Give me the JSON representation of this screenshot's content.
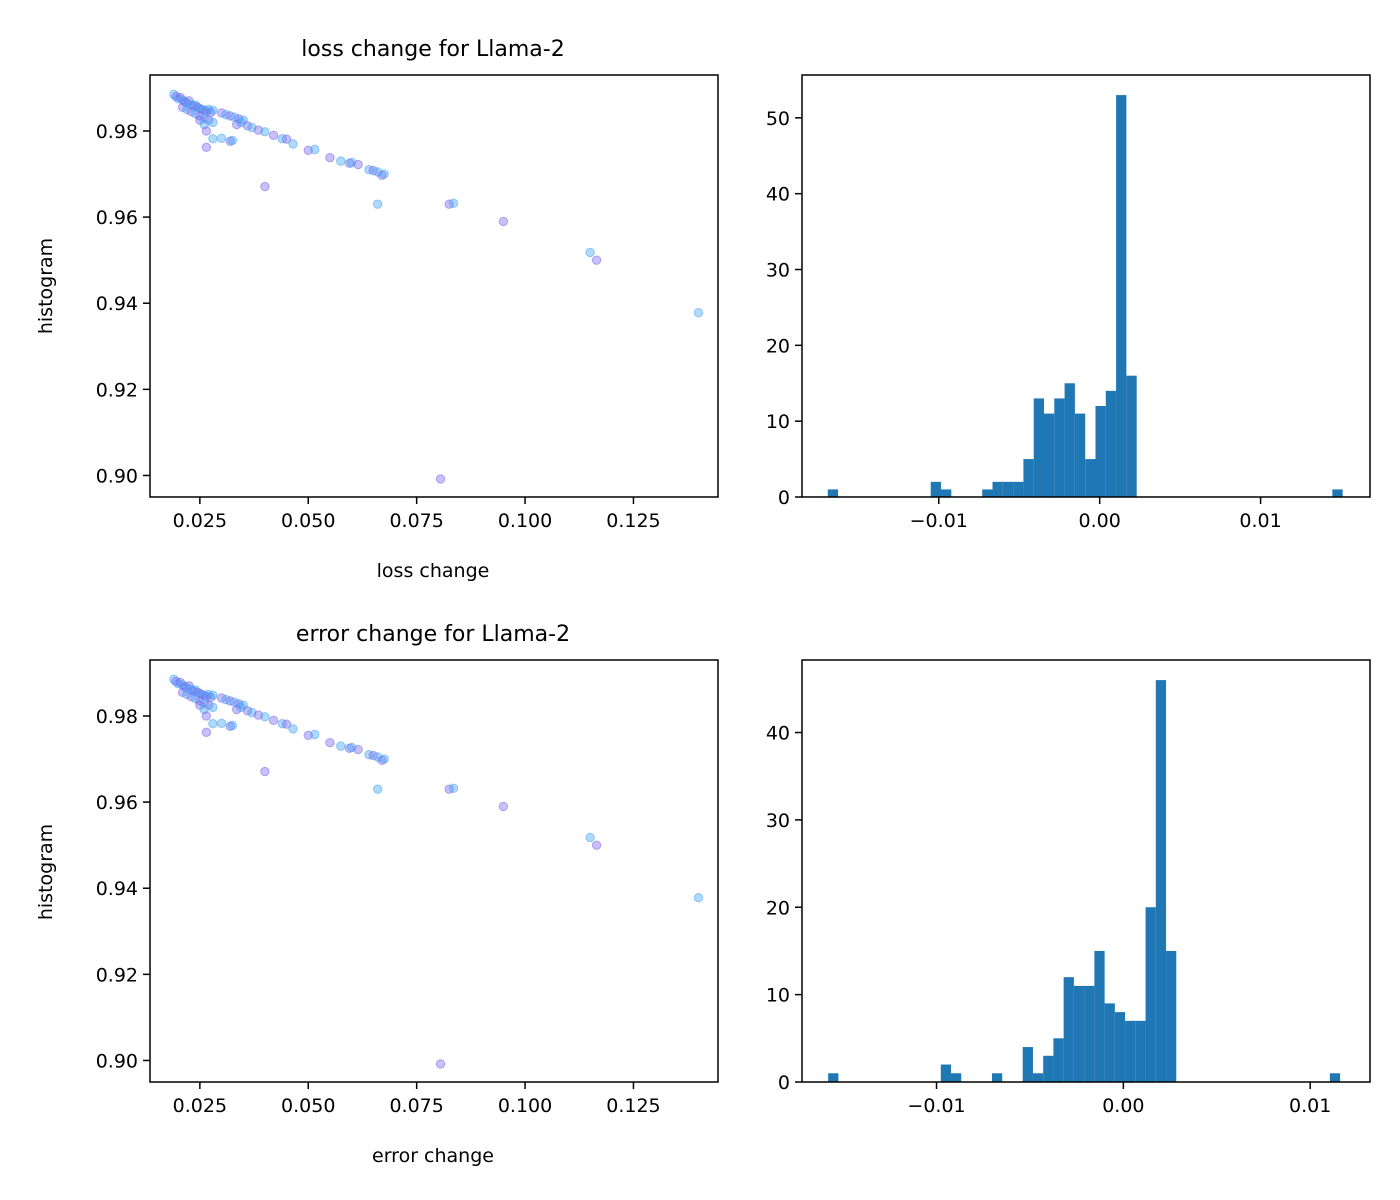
{
  "chart_data": [
    {
      "type": "scatter",
      "title": "loss change for Llama-2",
      "xlabel": "loss change",
      "ylabel": "histogram",
      "xlim": [
        0.0135,
        0.1445
      ],
      "ylim": [
        0.895,
        0.993
      ],
      "xticks": [
        0.025,
        0.05,
        0.075,
        0.1,
        0.125
      ],
      "xtick_labels": [
        "0.025",
        "0.050",
        "0.075",
        "0.100",
        "0.125"
      ],
      "yticks": [
        0.9,
        0.92,
        0.94,
        0.96,
        0.98
      ],
      "ytick_labels": [
        "0.90",
        "0.92",
        "0.94",
        "0.96",
        "0.98"
      ],
      "colors": [
        "#42a5f5",
        "#7b68ee"
      ],
      "grid": false,
      "points": [
        [
          0.019,
          0.9885
        ],
        [
          0.0195,
          0.988
        ],
        [
          0.02,
          0.9875
        ],
        [
          0.0205,
          0.9878
        ],
        [
          0.021,
          0.9872
        ],
        [
          0.0215,
          0.9868
        ],
        [
          0.022,
          0.9865
        ],
        [
          0.0225,
          0.987
        ],
        [
          0.023,
          0.9862
        ],
        [
          0.0235,
          0.9858
        ],
        [
          0.024,
          0.986
        ],
        [
          0.0245,
          0.9855
        ],
        [
          0.025,
          0.9852
        ],
        [
          0.0255,
          0.985
        ],
        [
          0.026,
          0.9848
        ],
        [
          0.0265,
          0.9845
        ],
        [
          0.027,
          0.985
        ],
        [
          0.0275,
          0.9843
        ],
        [
          0.028,
          0.9848
        ],
        [
          0.021,
          0.9855
        ],
        [
          0.022,
          0.985
        ],
        [
          0.023,
          0.9845
        ],
        [
          0.024,
          0.984
        ],
        [
          0.025,
          0.9835
        ],
        [
          0.026,
          0.983
        ],
        [
          0.027,
          0.9825
        ],
        [
          0.028,
          0.982
        ],
        [
          0.025,
          0.9825
        ],
        [
          0.026,
          0.9815
        ],
        [
          0.0265,
          0.98
        ],
        [
          0.028,
          0.9782
        ],
        [
          0.0265,
          0.9762
        ],
        [
          0.03,
          0.9783
        ],
        [
          0.032,
          0.9776
        ],
        [
          0.0325,
          0.9778
        ],
        [
          0.03,
          0.9842
        ],
        [
          0.031,
          0.9838
        ],
        [
          0.032,
          0.9835
        ],
        [
          0.033,
          0.9832
        ],
        [
          0.034,
          0.9828
        ],
        [
          0.035,
          0.9825
        ],
        [
          0.0335,
          0.9815
        ],
        [
          0.0345,
          0.982
        ],
        [
          0.036,
          0.9812
        ],
        [
          0.037,
          0.9808
        ],
        [
          0.0385,
          0.9802
        ],
        [
          0.04,
          0.9798
        ],
        [
          0.042,
          0.979
        ],
        [
          0.044,
          0.9782
        ],
        [
          0.045,
          0.9781
        ],
        [
          0.0465,
          0.977
        ],
        [
          0.05,
          0.9755
        ],
        [
          0.0515,
          0.9757
        ],
        [
          0.055,
          0.9738
        ],
        [
          0.0575,
          0.973
        ],
        [
          0.0595,
          0.9725
        ],
        [
          0.06,
          0.9727
        ],
        [
          0.0615,
          0.9722
        ],
        [
          0.064,
          0.971
        ],
        [
          0.065,
          0.9708
        ],
        [
          0.066,
          0.9705
        ],
        [
          0.067,
          0.9697
        ],
        [
          0.0675,
          0.97
        ],
        [
          0.04,
          0.9671
        ],
        [
          0.066,
          0.963
        ],
        [
          0.0825,
          0.963
        ],
        [
          0.0835,
          0.9632
        ],
        [
          0.095,
          0.959
        ],
        [
          0.115,
          0.9518
        ],
        [
          0.1165,
          0.95
        ],
        [
          0.14,
          0.9378
        ],
        [
          0.0805,
          0.8992
        ]
      ]
    },
    {
      "type": "bar",
      "title": "",
      "xlabel": "",
      "ylabel": "",
      "xlim": [
        -0.0185,
        0.0168
      ],
      "ylim": [
        0,
        55.65
      ],
      "xticks": [
        -0.01,
        0.0,
        0.01
      ],
      "xtick_labels": [
        "−0.01",
        "0.00",
        "0.01"
      ],
      "yticks": [
        0,
        10,
        20,
        30,
        40,
        50
      ],
      "ytick_labels": [
        "0",
        "10",
        "20",
        "30",
        "40",
        "50"
      ],
      "bar_color": "#1f77b4",
      "bin_start": -0.0169,
      "bin_width": 0.00064,
      "values": [
        1,
        0,
        0,
        0,
        0,
        0,
        0,
        0,
        0,
        0,
        2,
        1,
        0,
        0,
        0,
        1,
        2,
        2,
        2,
        5,
        13,
        11,
        13,
        15,
        11,
        5,
        12,
        14,
        53,
        16,
        0,
        0,
        0,
        0,
        0,
        0,
        0,
        0,
        0,
        0,
        0,
        0,
        0,
        0,
        0,
        0,
        0,
        0,
        0,
        1
      ]
    },
    {
      "type": "scatter",
      "title": "error change for Llama-2",
      "xlabel": "error change",
      "ylabel": "histogram",
      "xlim": [
        0.0135,
        0.1445
      ],
      "ylim": [
        0.895,
        0.993
      ],
      "xticks": [
        0.025,
        0.05,
        0.075,
        0.1,
        0.125
      ],
      "xtick_labels": [
        "0.025",
        "0.050",
        "0.075",
        "0.100",
        "0.125"
      ],
      "yticks": [
        0.9,
        0.92,
        0.94,
        0.96,
        0.98
      ],
      "ytick_labels": [
        "0.90",
        "0.92",
        "0.94",
        "0.96",
        "0.98"
      ],
      "colors": [
        "#42a5f5",
        "#7b68ee"
      ],
      "grid": false,
      "points": [
        [
          0.019,
          0.9885
        ],
        [
          0.0195,
          0.988
        ],
        [
          0.02,
          0.9875
        ],
        [
          0.0205,
          0.9878
        ],
        [
          0.021,
          0.9872
        ],
        [
          0.0215,
          0.9868
        ],
        [
          0.022,
          0.9865
        ],
        [
          0.0225,
          0.987
        ],
        [
          0.023,
          0.9862
        ],
        [
          0.0235,
          0.9858
        ],
        [
          0.024,
          0.986
        ],
        [
          0.0245,
          0.9855
        ],
        [
          0.025,
          0.9852
        ],
        [
          0.0255,
          0.985
        ],
        [
          0.026,
          0.9848
        ],
        [
          0.0265,
          0.9845
        ],
        [
          0.027,
          0.985
        ],
        [
          0.0275,
          0.9843
        ],
        [
          0.028,
          0.9848
        ],
        [
          0.021,
          0.9855
        ],
        [
          0.022,
          0.985
        ],
        [
          0.023,
          0.9845
        ],
        [
          0.024,
          0.984
        ],
        [
          0.025,
          0.9835
        ],
        [
          0.026,
          0.983
        ],
        [
          0.027,
          0.9825
        ],
        [
          0.028,
          0.982
        ],
        [
          0.025,
          0.9825
        ],
        [
          0.026,
          0.9815
        ],
        [
          0.0265,
          0.98
        ],
        [
          0.028,
          0.9782
        ],
        [
          0.0265,
          0.9762
        ],
        [
          0.03,
          0.9783
        ],
        [
          0.032,
          0.9776
        ],
        [
          0.0325,
          0.9778
        ],
        [
          0.03,
          0.9842
        ],
        [
          0.031,
          0.9838
        ],
        [
          0.032,
          0.9835
        ],
        [
          0.033,
          0.9832
        ],
        [
          0.034,
          0.9828
        ],
        [
          0.035,
          0.9825
        ],
        [
          0.0335,
          0.9815
        ],
        [
          0.0345,
          0.982
        ],
        [
          0.036,
          0.9812
        ],
        [
          0.037,
          0.9808
        ],
        [
          0.0385,
          0.9802
        ],
        [
          0.04,
          0.9798
        ],
        [
          0.042,
          0.979
        ],
        [
          0.044,
          0.9782
        ],
        [
          0.045,
          0.9781
        ],
        [
          0.0465,
          0.977
        ],
        [
          0.05,
          0.9755
        ],
        [
          0.0515,
          0.9757
        ],
        [
          0.055,
          0.9738
        ],
        [
          0.0575,
          0.973
        ],
        [
          0.0595,
          0.9725
        ],
        [
          0.06,
          0.9727
        ],
        [
          0.0615,
          0.9722
        ],
        [
          0.064,
          0.971
        ],
        [
          0.065,
          0.9708
        ],
        [
          0.066,
          0.9705
        ],
        [
          0.067,
          0.9697
        ],
        [
          0.0675,
          0.97
        ],
        [
          0.04,
          0.9671
        ],
        [
          0.066,
          0.963
        ],
        [
          0.0825,
          0.963
        ],
        [
          0.0835,
          0.9632
        ],
        [
          0.095,
          0.959
        ],
        [
          0.115,
          0.9518
        ],
        [
          0.1165,
          0.95
        ],
        [
          0.14,
          0.9378
        ],
        [
          0.0805,
          0.8992
        ]
      ]
    },
    {
      "type": "bar",
      "title": "",
      "xlabel": "",
      "ylabel": "",
      "xlim": [
        -0.0172,
        0.0132
      ],
      "ylim": [
        0,
        48.3
      ],
      "xticks": [
        -0.01,
        0.0,
        0.01
      ],
      "xtick_labels": [
        "−0.01",
        "0.00",
        "0.01"
      ],
      "yticks": [
        0,
        10,
        20,
        30,
        40
      ],
      "ytick_labels": [
        "0",
        "10",
        "20",
        "30",
        "40"
      ],
      "bar_color": "#1f77b4",
      "bin_start": -0.0158,
      "bin_width": 0.000548,
      "values": [
        1,
        0,
        0,
        0,
        0,
        0,
        0,
        0,
        0,
        0,
        0,
        2,
        1,
        0,
        0,
        0,
        1,
        0,
        0,
        4,
        1,
        3,
        5,
        12,
        11,
        11,
        15,
        9,
        8,
        7,
        7,
        20,
        46,
        15,
        0,
        0,
        0,
        0,
        0,
        0,
        0,
        0,
        0,
        0,
        0,
        0,
        0,
        0,
        0,
        1
      ]
    }
  ]
}
